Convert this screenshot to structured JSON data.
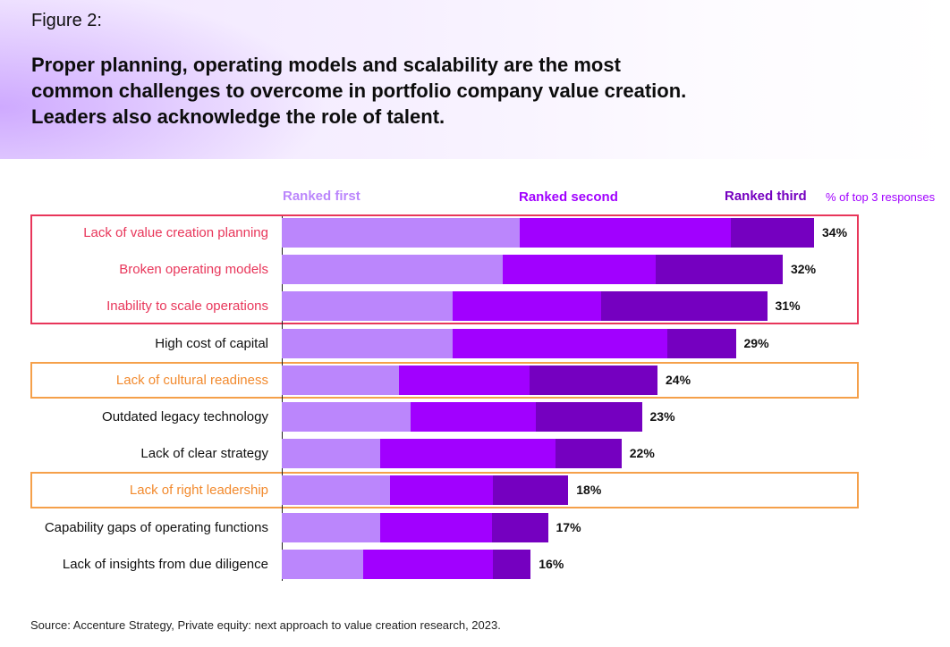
{
  "figure_label": "Figure 2:",
  "title": "Proper planning, operating models and scalability are the most\ncommon challenges to overcome in portfolio company value creation.\nLeaders also acknowledge the role of talent.",
  "source": "Source: Accenture Strategy, Private equity: next approach to value creation research, 2023.",
  "colors": {
    "ranked_first": "#bb86fc",
    "ranked_second": "#a100ff",
    "ranked_third": "#7500c0",
    "highlight_red": "#e8365a",
    "highlight_orange": "#f5a04a",
    "label_red": "#e8365a",
    "label_orange": "#f28a2e"
  },
  "chart_data": {
    "type": "bar",
    "orientation": "horizontal",
    "stacked": true,
    "unit_note": "% of top 3 responses",
    "categories": [
      "Lack of value creation planning",
      "Broken operating models",
      "Inability to scale operations",
      "High cost of capital",
      "Lack of cultural readiness",
      "Outdated legacy technology",
      "Lack of clear strategy",
      "Lack of  right leadership",
      "Capability gaps of operating functions",
      "Lack of insights from due diligence"
    ],
    "category_highlight": [
      "red",
      "red",
      "red",
      "none",
      "orange",
      "none",
      "none",
      "orange",
      "none",
      "none"
    ],
    "series": [
      {
        "name": "Ranked first",
        "values": [
          15.2,
          14.1,
          10.9,
          10.9,
          7.5,
          8.2,
          6.3,
          6.9,
          6.3,
          5.2
        ]
      },
      {
        "name": "Ranked second",
        "values": [
          13.5,
          9.8,
          9.5,
          13.7,
          8.3,
          8.0,
          11.2,
          6.6,
          7.1,
          8.3
        ]
      },
      {
        "name": "Ranked third",
        "values": [
          5.3,
          8.1,
          10.6,
          4.4,
          8.2,
          6.8,
          4.2,
          4.8,
          3.6,
          2.4
        ]
      }
    ],
    "totals": [
      "34%",
      "32%",
      "31%",
      "29%",
      "24%",
      "23%",
      "22%",
      "18%",
      "17%",
      "16%"
    ],
    "grid": false,
    "legend_position": "top"
  }
}
